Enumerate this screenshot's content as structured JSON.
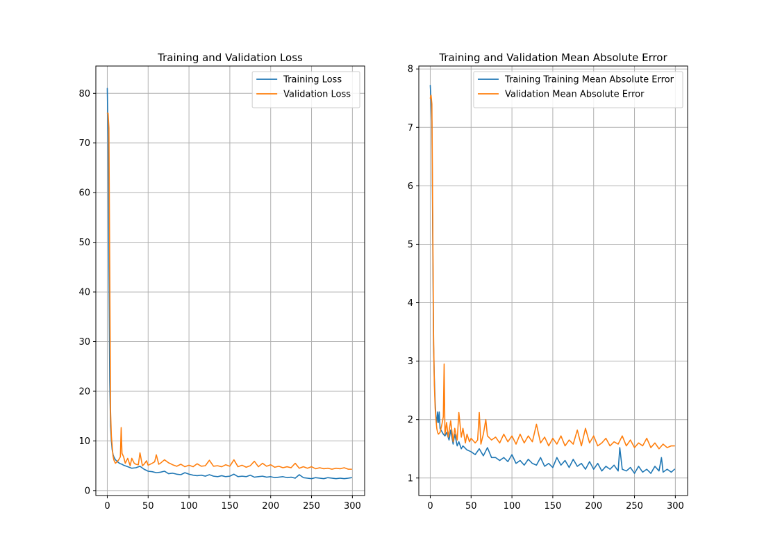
{
  "figure": {
    "background": "#ffffff"
  },
  "chart_data": [
    {
      "type": "line",
      "title": "Training and Validation Loss",
      "xlabel": "",
      "ylabel": "",
      "xlim": [
        -14,
        315
      ],
      "ylim": [
        -1,
        85.5
      ],
      "xticks": [
        0,
        50,
        100,
        150,
        200,
        250,
        300
      ],
      "yticks": [
        0,
        10,
        20,
        30,
        40,
        50,
        60,
        70,
        80
      ],
      "grid": true,
      "legend_position": "top-right",
      "series": [
        {
          "name": "Training Loss",
          "color": "#1f77b4",
          "x": [
            0,
            1,
            2,
            3,
            4,
            5,
            6,
            7,
            8,
            9,
            10,
            12,
            14,
            16,
            18,
            20,
            25,
            30,
            35,
            40,
            45,
            50,
            55,
            60,
            65,
            70,
            75,
            80,
            85,
            90,
            95,
            100,
            105,
            110,
            115,
            120,
            125,
            130,
            135,
            140,
            145,
            150,
            155,
            160,
            165,
            170,
            175,
            180,
            185,
            190,
            195,
            200,
            205,
            210,
            215,
            220,
            225,
            230,
            235,
            240,
            245,
            250,
            255,
            260,
            265,
            270,
            275,
            280,
            285,
            290,
            295,
            299
          ],
          "y": [
            81,
            71,
            45,
            22,
            13,
            10,
            8.2,
            7.3,
            6.8,
            6.5,
            6.2,
            5.9,
            5.6,
            5.4,
            5.3,
            5.1,
            4.8,
            4.5,
            4.6,
            4.9,
            4.3,
            3.9,
            3.8,
            3.6,
            3.7,
            3.9,
            3.4,
            3.5,
            3.3,
            3.2,
            3.6,
            3.3,
            3.1,
            3.0,
            3.1,
            2.9,
            3.2,
            2.9,
            2.8,
            3.0,
            2.8,
            2.9,
            3.3,
            2.8,
            2.9,
            2.8,
            3.1,
            2.7,
            2.8,
            2.9,
            2.7,
            2.8,
            2.6,
            2.7,
            2.8,
            2.6,
            2.7,
            2.5,
            3.2,
            2.6,
            2.5,
            2.4,
            2.6,
            2.5,
            2.4,
            2.6,
            2.5,
            2.4,
            2.5,
            2.4,
            2.5,
            2.6
          ]
        },
        {
          "name": "Validation Loss",
          "color": "#ff7f0e",
          "x": [
            0,
            1,
            2,
            3,
            4,
            5,
            6,
            7,
            8,
            9,
            10,
            12,
            14,
            16,
            17,
            18,
            20,
            22,
            25,
            28,
            30,
            33,
            35,
            38,
            40,
            43,
            45,
            48,
            50,
            55,
            58,
            60,
            63,
            65,
            70,
            75,
            80,
            85,
            90,
            95,
            100,
            105,
            110,
            115,
            120,
            125,
            130,
            135,
            140,
            145,
            150,
            155,
            160,
            165,
            170,
            175,
            180,
            185,
            190,
            195,
            200,
            205,
            210,
            215,
            220,
            225,
            230,
            235,
            240,
            245,
            250,
            255,
            260,
            265,
            270,
            275,
            280,
            285,
            290,
            295,
            299
          ],
          "y": [
            76,
            76,
            73,
            45,
            16,
            11,
            9,
            7,
            6.2,
            5.8,
            5.5,
            5.8,
            6.2,
            6.8,
            12.7,
            7.5,
            6.8,
            5.5,
            6.5,
            5.0,
            6.5,
            5.5,
            5.3,
            5.2,
            7.6,
            5.0,
            5.3,
            6.0,
            5.1,
            5.5,
            5.8,
            7.2,
            5.3,
            5.5,
            6.2,
            5.6,
            5.2,
            4.9,
            5.3,
            4.8,
            5.1,
            4.8,
            5.4,
            4.9,
            5.0,
            6.1,
            4.9,
            5.0,
            4.8,
            5.2,
            4.9,
            6.2,
            4.8,
            5.1,
            4.7,
            5.0,
            5.9,
            4.8,
            5.5,
            4.9,
            5.2,
            4.7,
            4.9,
            4.6,
            4.8,
            4.6,
            5.5,
            4.5,
            4.8,
            4.5,
            4.8,
            4.4,
            4.6,
            4.4,
            4.5,
            4.3,
            4.5,
            4.4,
            4.6,
            4.3,
            4.3
          ]
        }
      ]
    },
    {
      "type": "line",
      "title": "Training and Validation Mean Absolute Error",
      "xlabel": "",
      "ylabel": "",
      "xlim": [
        -14,
        315
      ],
      "ylim": [
        0.7,
        8.05
      ],
      "xticks": [
        0,
        50,
        100,
        150,
        200,
        250,
        300
      ],
      "yticks": [
        1,
        2,
        3,
        4,
        5,
        6,
        7,
        8
      ],
      "grid": true,
      "legend_position": "top-right",
      "series": [
        {
          "name": "Training Training Mean Absolute Error",
          "color": "#1f77b4",
          "x": [
            0,
            1,
            2,
            3,
            4,
            5,
            6,
            7,
            8,
            9,
            10,
            11,
            12,
            14,
            16,
            18,
            20,
            23,
            25,
            28,
            30,
            33,
            35,
            38,
            40,
            45,
            50,
            55,
            60,
            65,
            70,
            75,
            80,
            85,
            90,
            95,
            100,
            105,
            110,
            115,
            120,
            125,
            130,
            135,
            140,
            145,
            150,
            155,
            160,
            165,
            170,
            175,
            180,
            185,
            190,
            195,
            200,
            205,
            210,
            215,
            220,
            225,
            230,
            232,
            235,
            240,
            245,
            250,
            255,
            260,
            265,
            270,
            275,
            280,
            283,
            285,
            290,
            295,
            299
          ],
          "y": [
            7.72,
            7.45,
            7.1,
            5.2,
            3.3,
            2.7,
            2.3,
            2.05,
            1.95,
            2.13,
            1.95,
            2.13,
            1.85,
            1.8,
            1.75,
            1.72,
            1.78,
            1.65,
            1.82,
            1.58,
            1.75,
            1.55,
            1.62,
            1.5,
            1.55,
            1.48,
            1.45,
            1.4,
            1.5,
            1.38,
            1.52,
            1.35,
            1.35,
            1.3,
            1.35,
            1.28,
            1.4,
            1.25,
            1.3,
            1.22,
            1.32,
            1.25,
            1.22,
            1.35,
            1.2,
            1.25,
            1.18,
            1.35,
            1.22,
            1.3,
            1.18,
            1.32,
            1.2,
            1.25,
            1.15,
            1.28,
            1.15,
            1.25,
            1.12,
            1.2,
            1.15,
            1.22,
            1.12,
            1.52,
            1.15,
            1.12,
            1.18,
            1.08,
            1.2,
            1.1,
            1.15,
            1.08,
            1.2,
            1.12,
            1.35,
            1.1,
            1.15,
            1.1,
            1.15
          ]
        },
        {
          "name": "Validation Mean Absolute Error",
          "color": "#ff7f0e",
          "x": [
            0,
            1,
            2,
            3,
            4,
            5,
            6,
            7,
            8,
            9,
            10,
            12,
            14,
            16,
            17,
            18,
            20,
            22,
            25,
            28,
            30,
            33,
            35,
            38,
            40,
            43,
            45,
            48,
            50,
            55,
            58,
            60,
            62,
            65,
            68,
            70,
            75,
            80,
            85,
            90,
            95,
            100,
            105,
            110,
            115,
            120,
            125,
            130,
            135,
            140,
            145,
            150,
            155,
            160,
            165,
            170,
            175,
            180,
            185,
            190,
            195,
            200,
            205,
            210,
            215,
            220,
            225,
            230,
            235,
            240,
            245,
            250,
            255,
            260,
            265,
            270,
            275,
            280,
            285,
            290,
            295,
            299
          ],
          "y": [
            7.5,
            7.55,
            7.4,
            5.5,
            3.5,
            2.6,
            2.2,
            2.0,
            1.85,
            1.78,
            1.75,
            1.78,
            1.9,
            2.05,
            2.95,
            1.75,
            1.95,
            1.7,
            1.98,
            1.62,
            1.85,
            1.65,
            2.12,
            1.7,
            1.85,
            1.6,
            1.75,
            1.62,
            1.68,
            1.6,
            1.65,
            2.12,
            1.58,
            1.75,
            2.0,
            1.72,
            1.65,
            1.7,
            1.6,
            1.75,
            1.62,
            1.72,
            1.58,
            1.75,
            1.6,
            1.72,
            1.62,
            1.92,
            1.6,
            1.7,
            1.55,
            1.68,
            1.58,
            1.72,
            1.55,
            1.65,
            1.58,
            1.82,
            1.55,
            1.85,
            1.6,
            1.72,
            1.55,
            1.6,
            1.68,
            1.55,
            1.62,
            1.58,
            1.72,
            1.55,
            1.65,
            1.52,
            1.6,
            1.55,
            1.68,
            1.52,
            1.6,
            1.5,
            1.58,
            1.52,
            1.55,
            1.55
          ]
        }
      ]
    }
  ]
}
